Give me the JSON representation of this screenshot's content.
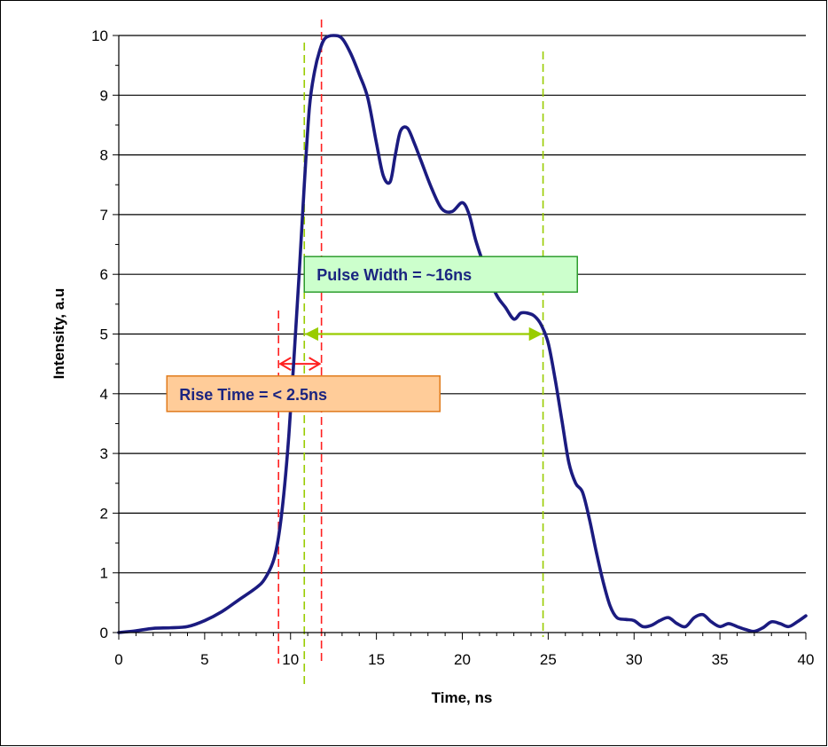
{
  "chart_data": {
    "type": "line",
    "title": "",
    "xlabel": "Time, ns",
    "ylabel": "Intensity, a.u",
    "xlim": [
      0,
      40
    ],
    "ylim": [
      0,
      10
    ],
    "x_ticks": [
      "0",
      "5",
      "10",
      "15",
      "20",
      "25",
      "30",
      "35",
      "40"
    ],
    "y_ticks": [
      "0",
      "1",
      "2",
      "3",
      "4",
      "5",
      "6",
      "7",
      "8",
      "9",
      "10"
    ],
    "grid": "horizontal",
    "series": [
      {
        "color": "#1b1b80",
        "x": [
          0,
          1,
          2,
          3,
          4,
          5,
          6,
          7,
          8,
          8.5,
          9,
          9.3,
          9.6,
          9.9,
          10.2,
          10.5,
          10.8,
          11.1,
          11.4,
          11.7,
          12,
          12.5,
          13,
          13.5,
          14,
          14.5,
          15,
          15.4,
          15.8,
          16.1,
          16.4,
          16.8,
          17.2,
          17.6,
          18.2,
          18.8,
          19.4,
          20,
          20.4,
          20.8,
          21.4,
          22,
          22.5,
          23,
          23.4,
          23.8,
          24.2,
          24.6,
          25,
          25.4,
          25.8,
          26.2,
          26.6,
          27,
          27.4,
          27.8,
          28.2,
          28.6,
          29,
          29.5,
          30,
          30.5,
          31,
          31.5,
          32,
          32.5,
          33,
          33.5,
          34,
          34.5,
          35,
          35.5,
          36,
          36.5,
          37,
          37.5,
          38,
          38.5,
          39,
          39.5,
          40
        ],
        "y": [
          0,
          0.03,
          0.07,
          0.08,
          0.1,
          0.2,
          0.35,
          0.55,
          0.75,
          0.9,
          1.2,
          1.6,
          2.3,
          3.3,
          4.6,
          6.0,
          7.5,
          8.8,
          9.4,
          9.75,
          9.95,
          10.0,
          9.95,
          9.7,
          9.35,
          8.95,
          8.2,
          7.65,
          7.55,
          8.0,
          8.4,
          8.45,
          8.2,
          7.9,
          7.45,
          7.1,
          7.05,
          7.2,
          7.0,
          6.55,
          6.05,
          5.65,
          5.45,
          5.25,
          5.35,
          5.35,
          5.3,
          5.15,
          4.85,
          4.25,
          3.55,
          2.85,
          2.5,
          2.35,
          1.9,
          1.35,
          0.85,
          0.45,
          0.25,
          0.22,
          0.2,
          0.1,
          0.12,
          0.2,
          0.25,
          0.15,
          0.1,
          0.25,
          0.3,
          0.18,
          0.1,
          0.15,
          0.1,
          0.05,
          0.02,
          0.08,
          0.18,
          0.15,
          0.1,
          0.18,
          0.28
        ]
      }
    ],
    "annotations": [
      {
        "text": "Pulse Width = ~16ns",
        "fill": "#ccffcc",
        "border": "#2e9d2e",
        "text_color": "#1b2580",
        "anchor_x": 10.8,
        "anchor_y": 6
      },
      {
        "text": "Rise Time = < 2.5ns",
        "fill": "#ffcc99",
        "border": "#e07b1c",
        "text_color": "#1b2580",
        "anchor_x": 2.8,
        "anchor_y": 4
      }
    ],
    "markers": {
      "rise_start_x": 9.3,
      "rise_end_x": 11.8,
      "pulse_start_x": 10.8,
      "pulse_end_x": 24.7,
      "pulse_level_y": 5,
      "rise_arrow_y": 4.5,
      "red_color": "#ff2020",
      "green_color": "#99cc00"
    }
  }
}
